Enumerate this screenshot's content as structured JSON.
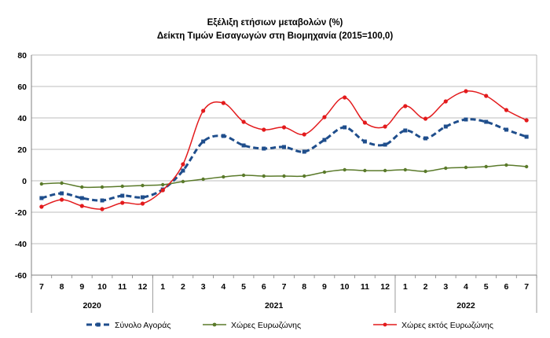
{
  "chart_data": {
    "type": "line",
    "title": "Εξέλιξη ετήσιων μεταβολών (%)",
    "subtitle": "Δείκτη Τιμών Εισαγωγών στη Βιομηχανία (2015=100,0)",
    "ylim": [
      -60,
      80
    ],
    "yticks": [
      "80",
      "60",
      "40",
      "20",
      "0",
      "-20",
      "-40",
      "-60"
    ],
    "categories": [
      "7",
      "8",
      "9",
      "10",
      "11",
      "12",
      "1",
      "2",
      "3",
      "4",
      "5",
      "6",
      "7",
      "8",
      "9",
      "10",
      "11",
      "12",
      "1",
      "2",
      "3",
      "4",
      "5",
      "6",
      "7"
    ],
    "year_groups": [
      {
        "label": "2020",
        "span": 6
      },
      {
        "label": "2021",
        "span": 12
      },
      {
        "label": "2022",
        "span": 7
      }
    ],
    "grid": true,
    "legend_position": "bottom",
    "series": [
      {
        "name": "Σύνολο Αγοράς",
        "color": "#1f4e8c",
        "style": "dashed",
        "values": [
          -11,
          -8,
          -11,
          -12.5,
          -9.5,
          -10.5,
          -5.5,
          6.5,
          25,
          28.5,
          22.5,
          20.5,
          21.5,
          18.5,
          26,
          34,
          25,
          23,
          32,
          27,
          34.5,
          39,
          37.5,
          32.5,
          28
        ]
      },
      {
        "name": "Χώρες Ευρωζώνης",
        "color": "#5a7a2a",
        "style": "solid",
        "values": [
          -2,
          -1.5,
          -4,
          -4,
          -3.5,
          -3,
          -2.5,
          -0.5,
          1,
          2.5,
          3.5,
          3,
          3,
          3,
          5.5,
          7,
          6.5,
          6.5,
          7,
          6,
          8,
          8.5,
          9,
          10,
          9
        ]
      },
      {
        "name": "Χώρες εκτός Ευρωζώνης",
        "color": "#e31a1c",
        "style": "solid",
        "values": [
          -16.5,
          -12,
          -16,
          -18,
          -14,
          -14.5,
          -6,
          10.5,
          44.5,
          49.5,
          37.5,
          32.5,
          34,
          29.5,
          40.5,
          53,
          37,
          34.5,
          47.5,
          39.5,
          50.5,
          57,
          54,
          45,
          38.5
        ]
      }
    ]
  }
}
